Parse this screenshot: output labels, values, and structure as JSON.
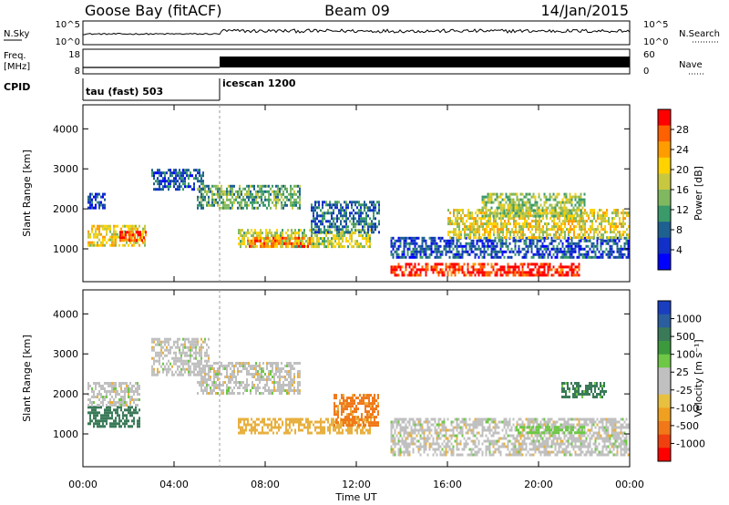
{
  "header": {
    "station": "Goose Bay (fitACF)",
    "beam": "Beam 09",
    "date": "14/Jan/2015"
  },
  "noise_panel": {
    "left_label": "N.Sky",
    "right_label": "N.Search",
    "ticks": [
      "10^5",
      "10^0"
    ],
    "right_ticks": [
      "10^5",
      "10^0"
    ]
  },
  "freq_panel": {
    "left_label_1": "Freq.",
    "left_label_2": "[MHz]",
    "ticks": [
      "18",
      "8"
    ],
    "right_label": "Nave",
    "right_ticks": [
      "60",
      "0"
    ]
  },
  "cpid": {
    "label": "CPID",
    "segments": [
      {
        "name": "tau (fast) 503",
        "start_hour": 0,
        "end_hour": 6
      },
      {
        "name": "icescan 1200",
        "start_hour": 6,
        "end_hour": 24
      }
    ]
  },
  "colorbars": {
    "power": {
      "label": "Power [dB]",
      "ticks": [
        "28",
        "24",
        "20",
        "16",
        "12",
        "8",
        "4"
      ],
      "colors": [
        "#ff0000",
        "#ff6000",
        "#ff9c00",
        "#ffd200",
        "#c8c840",
        "#80b860",
        "#3a9a6a",
        "#1e6090",
        "#1030c8",
        "#0000ff"
      ]
    },
    "velocity": {
      "label": "Velocity [m s⁻¹]",
      "ticks": [
        "1000",
        "500",
        "100",
        "25",
        "-25",
        "-100",
        "-500",
        "-1000"
      ],
      "colors": [
        "#1a3ec0",
        "#2a5e9e",
        "#3a7a58",
        "#3c9a3c",
        "#6ec846",
        "#c0c0c0",
        "#c0c0c0",
        "#e8c040",
        "#f0a020",
        "#f07818",
        "#f04010",
        "#ff0000"
      ]
    }
  },
  "chart_data": [
    {
      "type": "heatmap",
      "name": "power",
      "ylabel": "Slant Range [km]",
      "xlabel": "Time UT",
      "x_ticks": [
        "00:00",
        "04:00",
        "08:00",
        "12:00",
        "16:00",
        "20:00",
        "00:00"
      ],
      "y_ticks": [
        "1000",
        "2000",
        "3000",
        "4000"
      ],
      "xlim": [
        0,
        24
      ],
      "ylim": [
        180,
        4600
      ],
      "regions": [
        {
          "t": [
            0.2,
            2.7
          ],
          "r": [
            1100,
            1600
          ],
          "power": 18
        },
        {
          "t": [
            1.6,
            2.8
          ],
          "r": [
            1200,
            1450
          ],
          "power": 26
        },
        {
          "t": [
            0.2,
            1.0
          ],
          "r": [
            2000,
            2400
          ],
          "power": 6
        },
        {
          "t": [
            3.0,
            5.3
          ],
          "r": [
            2500,
            3000
          ],
          "power": 7
        },
        {
          "t": [
            5.0,
            9.5
          ],
          "r": [
            2000,
            2600
          ],
          "power": 12
        },
        {
          "t": [
            6.8,
            12.6
          ],
          "r": [
            1050,
            1500
          ],
          "power": 16
        },
        {
          "t": [
            7.2,
            10.0
          ],
          "r": [
            1050,
            1300
          ],
          "power": 24
        },
        {
          "t": [
            10.0,
            13.0
          ],
          "r": [
            1400,
            2200
          ],
          "power": 8
        },
        {
          "t": [
            13.5,
            21.8
          ],
          "r": [
            350,
            650
          ],
          "power": 28
        },
        {
          "t": [
            13.5,
            24.0
          ],
          "r": [
            800,
            1300
          ],
          "power": 6
        },
        {
          "t": [
            16.0,
            24.0
          ],
          "r": [
            1300,
            2000
          ],
          "power": 18
        },
        {
          "t": [
            17.5,
            22.0
          ],
          "r": [
            1800,
            2400
          ],
          "power": 14
        }
      ]
    },
    {
      "type": "heatmap",
      "name": "velocity",
      "ylabel": "Slant Range [km]",
      "xlabel": "Time UT",
      "x_ticks": [
        "00:00",
        "04:00",
        "08:00",
        "12:00",
        "16:00",
        "20:00",
        "00:00"
      ],
      "y_ticks": [
        "1000",
        "2000",
        "3000",
        "4000"
      ],
      "xlim": [
        0,
        24
      ],
      "ylim": [
        180,
        4600
      ],
      "regions": [
        {
          "t": [
            0.2,
            2.5
          ],
          "r": [
            1200,
            1700
          ],
          "velocity": 200
        },
        {
          "t": [
            0.2,
            2.5
          ],
          "r": [
            1700,
            2300
          ],
          "velocity": 0
        },
        {
          "t": [
            3.0,
            5.5
          ],
          "r": [
            2500,
            3400
          ],
          "velocity": 0
        },
        {
          "t": [
            5.0,
            9.5
          ],
          "r": [
            2000,
            2800
          ],
          "velocity": 0
        },
        {
          "t": [
            6.8,
            12.6
          ],
          "r": [
            1050,
            1400
          ],
          "velocity": -60
        },
        {
          "t": [
            11.0,
            13.0
          ],
          "r": [
            1200,
            2000
          ],
          "velocity": -120
        },
        {
          "t": [
            13.5,
            24.0
          ],
          "r": [
            500,
            1400
          ],
          "velocity": 0
        },
        {
          "t": [
            19.0,
            22.0
          ],
          "r": [
            1000,
            1200
          ],
          "velocity": 60
        },
        {
          "t": [
            21.0,
            23.0
          ],
          "r": [
            1900,
            2300
          ],
          "velocity": 120
        }
      ]
    }
  ]
}
